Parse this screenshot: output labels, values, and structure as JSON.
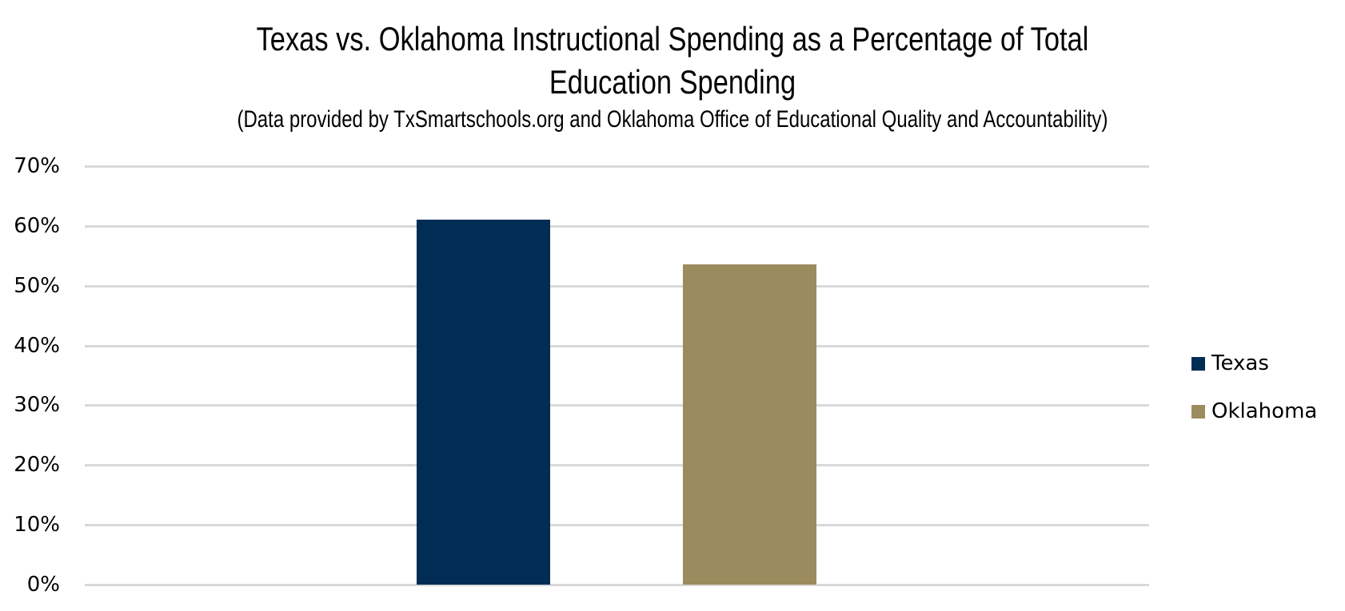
{
  "title": {
    "line1": "Texas vs. Oklahoma Instructional Spending as a Percentage of Total",
    "line2": "Education Spending",
    "subtitle": "(Data provided by TxSmartschools.org and Oklahoma Office of Educational Quality and Accountability)"
  },
  "yaxis": {
    "ticks": [
      "0%",
      "10%",
      "20%",
      "30%",
      "40%",
      "50%",
      "60%",
      "70%"
    ]
  },
  "legend": [
    {
      "label": "Texas",
      "color": "#012d55"
    },
    {
      "label": "Oklahoma",
      "color": "#9c8b5e"
    }
  ],
  "chart_data": {
    "type": "bar",
    "title": "Texas vs. Oklahoma Instructional Spending as a Percentage of Total Education Spending",
    "subtitle": "(Data provided by TxSmartschools.org and Oklahoma Office of Educational Quality and Accountability)",
    "categories": [
      ""
    ],
    "series": [
      {
        "name": "Texas",
        "values": [
          61
        ],
        "color": "#012d55"
      },
      {
        "name": "Oklahoma",
        "values": [
          53.6
        ],
        "color": "#9c8b5e"
      }
    ],
    "xlabel": "",
    "ylabel": "",
    "ylim": [
      0,
      70
    ],
    "yticks": [
      "0%",
      "10%",
      "20%",
      "30%",
      "40%",
      "50%",
      "60%",
      "70%"
    ],
    "grid": true,
    "legend_position": "right"
  }
}
